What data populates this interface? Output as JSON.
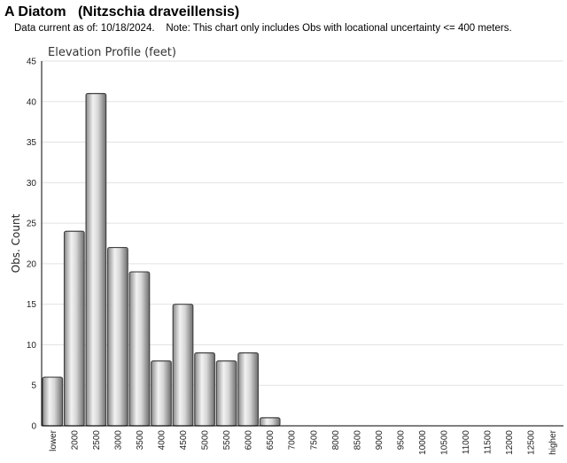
{
  "header": {
    "title": "A Diatom   (Nitzschia draveillensis)",
    "note": "Data current as of: 10/18/2024.    Note: This chart only includes Obs with locational uncertainty <= 400 meters."
  },
  "chart_data": {
    "type": "bar",
    "title": "Elevation Profile (feet)",
    "xlabel": "",
    "ylabel": "Obs. Count",
    "ylim": [
      0,
      45
    ],
    "yticks": [
      0,
      5,
      10,
      15,
      20,
      25,
      30,
      35,
      40,
      45
    ],
    "grid": true,
    "categories": [
      "lower",
      "2000",
      "2500",
      "3000",
      "3500",
      "4000",
      "4500",
      "5000",
      "5500",
      "6000",
      "6500",
      "7000",
      "7500",
      "8000",
      "8500",
      "9000",
      "9500",
      "10000",
      "10500",
      "11000",
      "11500",
      "12000",
      "12500",
      "higher"
    ],
    "values": [
      6,
      24,
      41,
      22,
      19,
      8,
      15,
      9,
      8,
      9,
      1,
      0,
      0,
      0,
      0,
      0,
      0,
      0,
      0,
      0,
      0,
      0,
      0,
      0
    ],
    "colors": {
      "bar_light": "#f4f4f4",
      "bar_dark": "#7a7a7a",
      "bar_stroke": "#444444",
      "grid": "#e2e2e2"
    }
  }
}
